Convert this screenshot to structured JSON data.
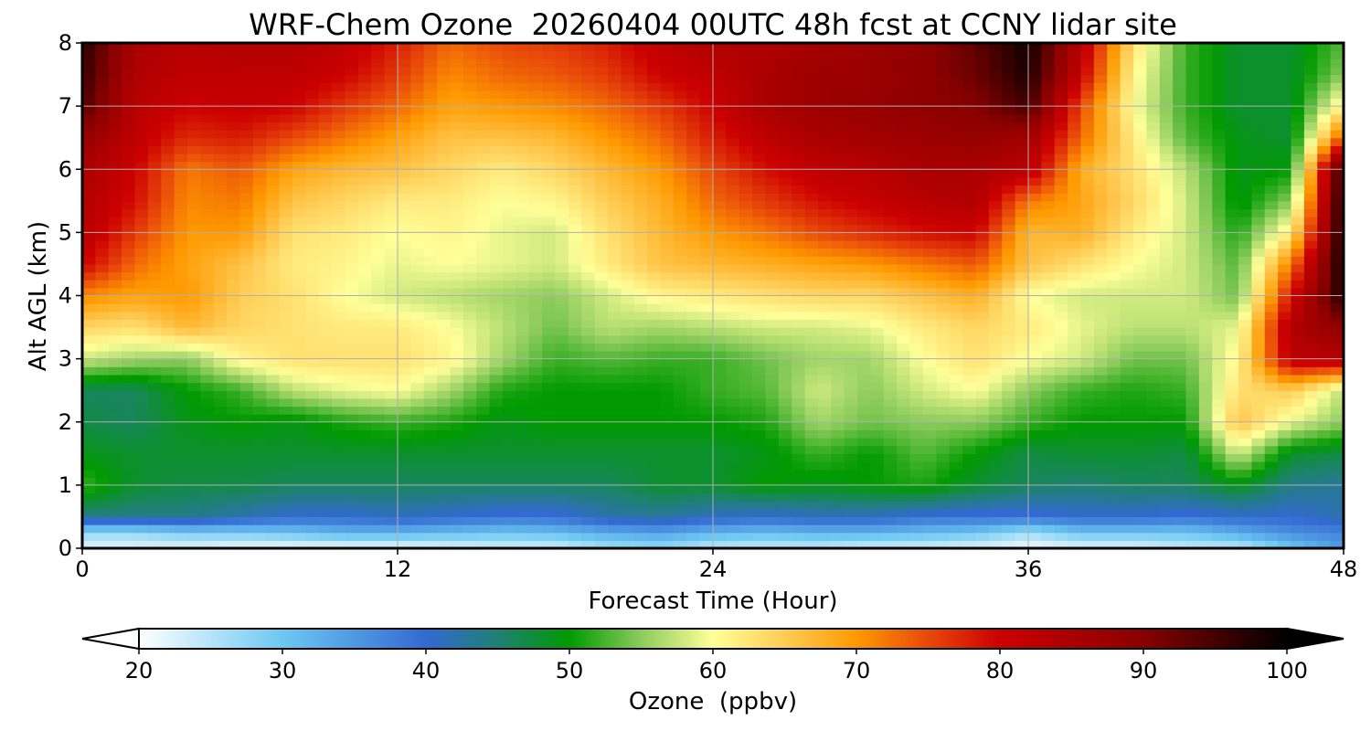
{
  "chart_data": {
    "type": "heatmap",
    "title": "WRF-Chem Ozone  20260404 00UTC 48h fcst at CCNY lidar site",
    "xlabel": "Forecast Time (Hour)",
    "ylabel": "Alt AGL (km)",
    "xlim": [
      0,
      48
    ],
    "ylim": [
      0,
      8
    ],
    "xticks": [
      0,
      12,
      24,
      36,
      48
    ],
    "yticks": [
      0,
      1,
      2,
      3,
      4,
      5,
      6,
      7,
      8
    ],
    "grid": true,
    "colorbar": {
      "label": "Ozone  (ppbv)",
      "min": 20,
      "max": 100,
      "ticks": [
        20,
        30,
        40,
        50,
        60,
        70,
        80,
        90,
        100
      ],
      "extend": "both",
      "placement": "bottom",
      "stops": [
        {
          "value": 20,
          "color": "#ffffff"
        },
        {
          "value": 30,
          "color": "#6cc8f2"
        },
        {
          "value": 40,
          "color": "#3369d2"
        },
        {
          "value": 45,
          "color": "#1f8074"
        },
        {
          "value": 50,
          "color": "#009a00"
        },
        {
          "value": 55,
          "color": "#8ccc5c"
        },
        {
          "value": 60,
          "color": "#ffff99"
        },
        {
          "value": 65,
          "color": "#ffcc55"
        },
        {
          "value": 70,
          "color": "#ff9900"
        },
        {
          "value": 75,
          "color": "#e8480a"
        },
        {
          "value": 80,
          "color": "#cc0000"
        },
        {
          "value": 90,
          "color": "#880000"
        },
        {
          "value": 100,
          "color": "#000000"
        }
      ]
    },
    "times": [
      0,
      2,
      4,
      6,
      8,
      10,
      12,
      14,
      16,
      18,
      20,
      22,
      24,
      26,
      28,
      30,
      32,
      34,
      36,
      38,
      40,
      42,
      44,
      46,
      48
    ],
    "altitudes": [
      0,
      0.25,
      0.5,
      1,
      1.5,
      2,
      2.5,
      3,
      3.5,
      4,
      4.5,
      5,
      5.5,
      6,
      6.5,
      7,
      7.5,
      8
    ],
    "values": [
      [
        22,
        22,
        22,
        21,
        21,
        21,
        21,
        22,
        23,
        23,
        26,
        27,
        24,
        24,
        24,
        23,
        23,
        22,
        21,
        22,
        22,
        24,
        24,
        30,
        35
      ],
      [
        27,
        27,
        29,
        29,
        30,
        32,
        32,
        31,
        30,
        31,
        33,
        34,
        32,
        31,
        32,
        32,
        31,
        30,
        26,
        30,
        30,
        30,
        33,
        36,
        37
      ],
      [
        44,
        44,
        44,
        42,
        40,
        40,
        41,
        40,
        39,
        39,
        42,
        43,
        41,
        40,
        41,
        41,
        39,
        39,
        39,
        40,
        40,
        39,
        40,
        40,
        42
      ],
      [
        52,
        48,
        47,
        47,
        46,
        46,
        46,
        46,
        46,
        46,
        46,
        48,
        48,
        50,
        49,
        50,
        51,
        48,
        46,
        45,
        46,
        46,
        49,
        44,
        43
      ],
      [
        49,
        48,
        48,
        48,
        48,
        48,
        48,
        48,
        48,
        48,
        48,
        48,
        48,
        49,
        52,
        50,
        53,
        50,
        47,
        48,
        48,
        47,
        58,
        48,
        47
      ],
      [
        47,
        46,
        49,
        50,
        49,
        51,
        52,
        51,
        49,
        50,
        50,
        50,
        50,
        51,
        56,
        54,
        55,
        55,
        52,
        50,
        50,
        50,
        66,
        59,
        55
      ],
      [
        46,
        46,
        50,
        52,
        57,
        59,
        60,
        56,
        51,
        50,
        50,
        50,
        52,
        53,
        58,
        55,
        58,
        60,
        55,
        52,
        51,
        52,
        63,
        65,
        57
      ],
      [
        58,
        56,
        55,
        61,
        63,
        63,
        63,
        61,
        56,
        52,
        53,
        52,
        52,
        54,
        56,
        56,
        60,
        63,
        60,
        58,
        54,
        54,
        61,
        82,
        83
      ],
      [
        64,
        63,
        67,
        64,
        63,
        62,
        62,
        60,
        57,
        54,
        57,
        56,
        57,
        58,
        58,
        59,
        62,
        64,
        62,
        59,
        57,
        57,
        59,
        84,
        89
      ],
      [
        71,
        69,
        70,
        65,
        63,
        60,
        58,
        57,
        56,
        55,
        58,
        61,
        62,
        63,
        64,
        64,
        66,
        68,
        60,
        58,
        58,
        58,
        54,
        79,
        98
      ],
      [
        80,
        73,
        69,
        66,
        62,
        61,
        59,
        60,
        59,
        58,
        62,
        66,
        67,
        68,
        69,
        70,
        72,
        74,
        66,
        63,
        60,
        58,
        53,
        72,
        99
      ],
      [
        83,
        76,
        70,
        70,
        63,
        62,
        60,
        61,
        59,
        58,
        63,
        67,
        70,
        72,
        75,
        77,
        79,
        80,
        67,
        68,
        62,
        58,
        51,
        62,
        99
      ],
      [
        84,
        79,
        71,
        72,
        66,
        64,
        62,
        62,
        60,
        61,
        65,
        68,
        73,
        76,
        79,
        81,
        83,
        84,
        72,
        69,
        64,
        58,
        49,
        55,
        99
      ],
      [
        85,
        80,
        72,
        74,
        69,
        67,
        66,
        64,
        62,
        64,
        67,
        70,
        75,
        79,
        82,
        83,
        85,
        85,
        83,
        68,
        63,
        57,
        49,
        50,
        98
      ],
      [
        88,
        82,
        77,
        78,
        75,
        72,
        69,
        66,
        66,
        67,
        70,
        73,
        78,
        82,
        85,
        86,
        87,
        88,
        86,
        73,
        62,
        53,
        49,
        48,
        75
      ],
      [
        94,
        83,
        80,
        81,
        80,
        76,
        73,
        69,
        70,
        71,
        73,
        76,
        80,
        85,
        87,
        88,
        89,
        90,
        95,
        75,
        60,
        52,
        48,
        48,
        62
      ],
      [
        96,
        84,
        82,
        82,
        82,
        80,
        76,
        71,
        73,
        74,
        76,
        80,
        82,
        85,
        87,
        87,
        89,
        92,
        98,
        81,
        61,
        52,
        48,
        48,
        55
      ],
      [
        97,
        85,
        83,
        84,
        84,
        82,
        78,
        73,
        75,
        76,
        78,
        82,
        84,
        84,
        86,
        87,
        89,
        93,
        99,
        83,
        63,
        52,
        48,
        48,
        53
      ]
    ]
  }
}
